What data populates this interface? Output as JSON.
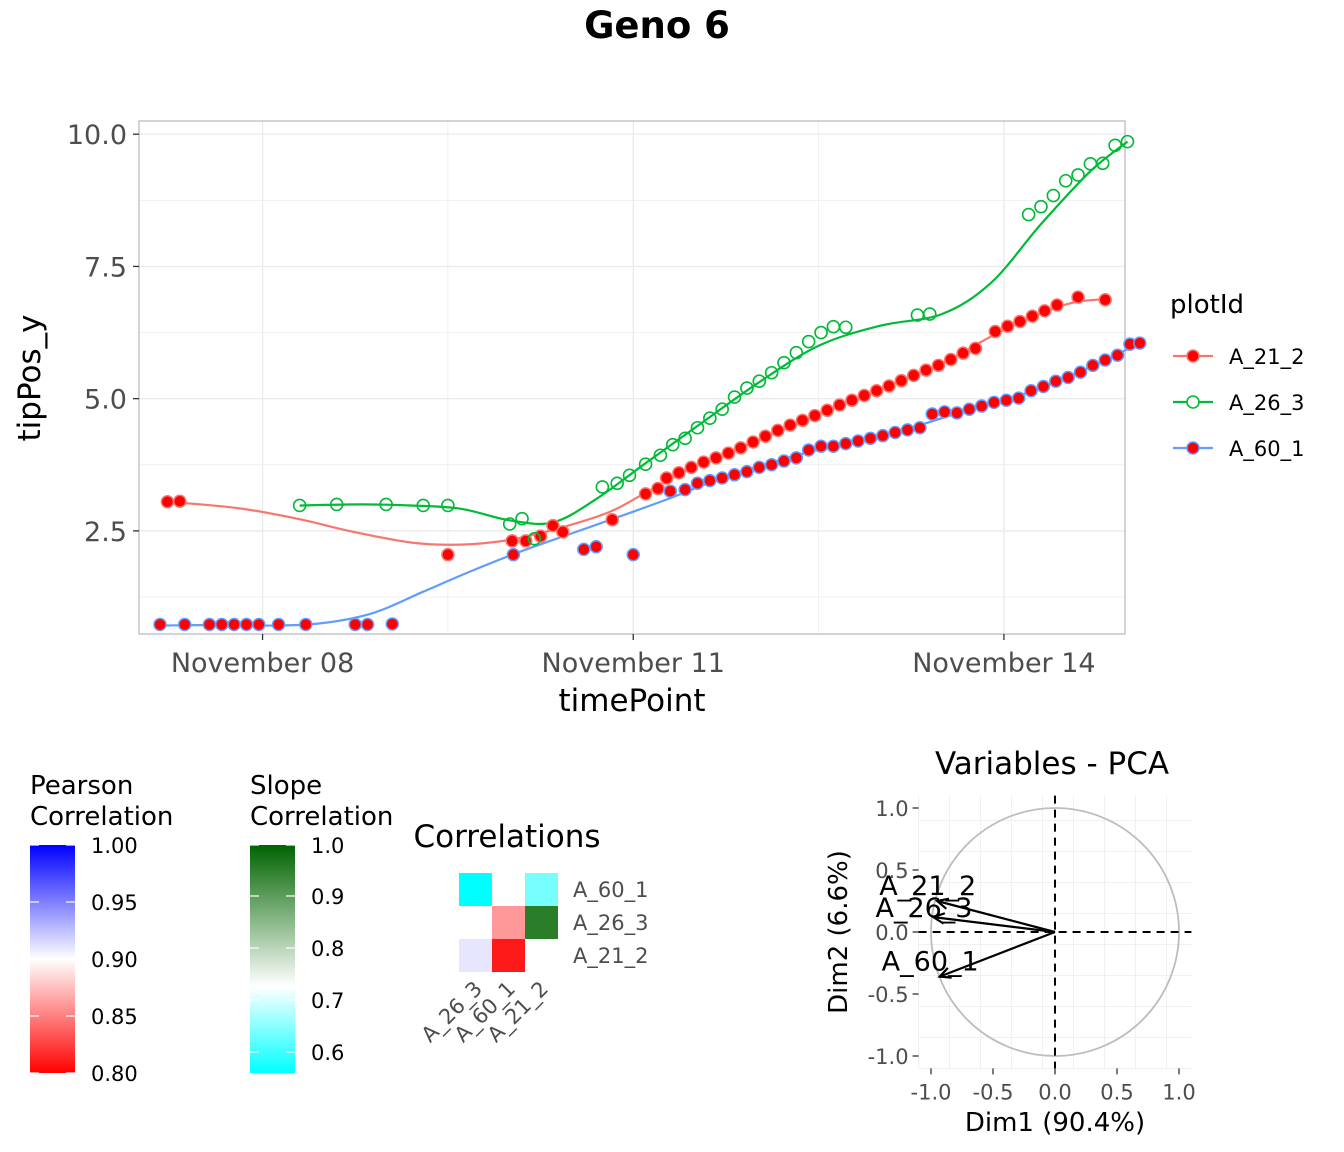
{
  "title": "Geno 6",
  "colors": {
    "A_21_2": "#F8766D",
    "A_26_3": "#00BA38",
    "A_60_1": "#619CFF",
    "point_fill": "#FF0000",
    "grid": "#EBEBEB",
    "panel_border": "#BDBDBD",
    "pearson_gradient": [
      "#FF0000",
      "#FFFFFF",
      "#0000FF"
    ],
    "slope_gradient": [
      "#00FFFF",
      "#FFFFFF",
      "#006400"
    ]
  },
  "chart_data": [
    {
      "type": "scatter",
      "title": "Geno 6",
      "xlabel": "timePoint",
      "ylabel": "tipPos_y",
      "x_ticks": [
        "November 08",
        "November 11",
        "November 14"
      ],
      "y_ticks": [
        "2.5",
        "5.0",
        "7.5",
        "10.0"
      ],
      "xlim": [
        "2021-11-07",
        "2021-11-14.98"
      ],
      "ylim": [
        0.55,
        10.25
      ],
      "legend_title": "plotId",
      "legend_position": "right",
      "grid": true,
      "series": [
        {
          "name": "A_21_2",
          "marker": "filled-circle",
          "points": [
            [
              "2021-11-07.23",
              3.05
            ],
            [
              "2021-11-07.33",
              3.06
            ],
            [
              "2021-11-09.5",
              2.05
            ],
            [
              "2021-11-10.02",
              2.31
            ],
            [
              "2021-11-10.13",
              2.31
            ],
            [
              "2021-11-10.25",
              2.4
            ],
            [
              "2021-11-10.35",
              2.6
            ],
            [
              "2021-11-10.43",
              2.48
            ],
            [
              "2021-11-10.83",
              2.71
            ],
            [
              "2021-11-11.1",
              3.2
            ],
            [
              "2021-11-11.2",
              3.3
            ],
            [
              "2021-11-11.27",
              3.5
            ],
            [
              "2021-11-11.37",
              3.6
            ],
            [
              "2021-11-11.47",
              3.7
            ],
            [
              "2021-11-11.57",
              3.8
            ],
            [
              "2021-11-11.67",
              3.88
            ],
            [
              "2021-11-11.77",
              3.97
            ],
            [
              "2021-11-11.87",
              4.07
            ],
            [
              "2021-11-11.97",
              4.18
            ],
            [
              "2021-11-12.07",
              4.29
            ],
            [
              "2021-11-12.17",
              4.4
            ],
            [
              "2021-11-12.27",
              4.5
            ],
            [
              "2021-11-12.37",
              4.59
            ],
            [
              "2021-11-12.47",
              4.68
            ],
            [
              "2021-11-12.57",
              4.78
            ],
            [
              "2021-11-12.67",
              4.88
            ],
            [
              "2021-11-12.77",
              4.97
            ],
            [
              "2021-11-12.87",
              5.06
            ],
            [
              "2021-11-12.97",
              5.15
            ],
            [
              "2021-11-13.07",
              5.24
            ],
            [
              "2021-11-13.17",
              5.34
            ],
            [
              "2021-11-13.27",
              5.44
            ],
            [
              "2021-11-13.37",
              5.54
            ],
            [
              "2021-11-13.47",
              5.63
            ],
            [
              "2021-11-13.57",
              5.74
            ],
            [
              "2021-11-13.67",
              5.86
            ],
            [
              "2021-11-13.77",
              5.95
            ],
            [
              "2021-11-13.93",
              6.27
            ],
            [
              "2021-11-14.03",
              6.37
            ],
            [
              "2021-11-14.13",
              6.46
            ],
            [
              "2021-11-14.23",
              6.56
            ],
            [
              "2021-11-14.33",
              6.66
            ],
            [
              "2021-11-14.43",
              6.77
            ],
            [
              "2021-11-14.6",
              6.92
            ],
            [
              "2021-11-14.82",
              6.87
            ]
          ],
          "trend": [
            [
              "2021-11-07.23",
              3.05
            ],
            [
              "2021-11-07.8",
              2.93
            ],
            [
              "2021-11-08.3",
              2.72
            ],
            [
              "2021-11-08.7",
              2.5
            ],
            [
              "2021-11-09.2",
              2.28
            ],
            [
              "2021-11-09.6",
              2.24
            ],
            [
              "2021-11-10.0",
              2.33
            ],
            [
              "2021-11-10.4",
              2.55
            ],
            [
              "2021-11-10.8",
              2.85
            ],
            [
              "2021-11-11.1",
              3.22
            ],
            [
              "2021-11-11.5",
              3.72
            ],
            [
              "2021-11-12.0",
              4.2
            ],
            [
              "2021-11-12.5",
              4.7
            ],
            [
              "2021-11-13.0",
              5.18
            ],
            [
              "2021-11-13.5",
              5.67
            ],
            [
              "2021-11-14.0",
              6.3
            ],
            [
              "2021-11-14.5",
              6.78
            ],
            [
              "2021-11-14.8",
              6.88
            ]
          ]
        },
        {
          "name": "A_26_3",
          "marker": "open-circle",
          "points": [
            [
              "2021-11-08.3",
              2.98
            ],
            [
              "2021-11-08.6",
              3.0
            ],
            [
              "2021-11-09.0",
              3.0
            ],
            [
              "2021-11-09.3",
              2.98
            ],
            [
              "2021-11-09.5",
              2.98
            ],
            [
              "2021-11-10.0",
              2.63
            ],
            [
              "2021-11-10.1",
              2.73
            ],
            [
              "2021-11-10.2",
              2.35
            ],
            [
              "2021-11-10.75",
              3.33
            ],
            [
              "2021-11-10.87",
              3.4
            ],
            [
              "2021-11-10.97",
              3.55
            ],
            [
              "2021-11-11.1",
              3.76
            ],
            [
              "2021-11-11.22",
              3.93
            ],
            [
              "2021-11-11.32",
              4.13
            ],
            [
              "2021-11-11.42",
              4.25
            ],
            [
              "2021-11-11.52",
              4.45
            ],
            [
              "2021-11-11.62",
              4.63
            ],
            [
              "2021-11-11.72",
              4.8
            ],
            [
              "2021-11-11.82",
              5.03
            ],
            [
              "2021-11-11.92",
              5.2
            ],
            [
              "2021-11-12.02",
              5.33
            ],
            [
              "2021-11-12.12",
              5.49
            ],
            [
              "2021-11-12.22",
              5.68
            ],
            [
              "2021-11-12.32",
              5.87
            ],
            [
              "2021-11-12.42",
              6.08
            ],
            [
              "2021-11-12.52",
              6.25
            ],
            [
              "2021-11-12.62",
              6.36
            ],
            [
              "2021-11-12.72",
              6.35
            ],
            [
              "2021-11-13.3",
              6.58
            ],
            [
              "2021-11-13.4",
              6.6
            ],
            [
              "2021-11-14.2",
              8.48
            ],
            [
              "2021-11-14.3",
              8.63
            ],
            [
              "2021-11-14.4",
              8.84
            ],
            [
              "2021-11-14.5",
              9.12
            ],
            [
              "2021-11-14.6",
              9.23
            ],
            [
              "2021-11-14.7",
              9.44
            ],
            [
              "2021-11-14.8",
              9.45
            ],
            [
              "2021-11-14.9",
              9.79
            ],
            [
              "2021-11-15.0",
              9.86
            ]
          ],
          "trend": [
            [
              "2021-11-08.3",
              2.98
            ],
            [
              "2021-11-08.8",
              3.0
            ],
            [
              "2021-11-09.2",
              2.98
            ],
            [
              "2021-11-09.6",
              2.92
            ],
            [
              "2021-11-10.0",
              2.7
            ],
            [
              "2021-11-10.35",
              2.66
            ],
            [
              "2021-11-10.7",
              3.1
            ],
            [
              "2021-11-11.1",
              3.78
            ],
            [
              "2021-11-11.5",
              4.45
            ],
            [
              "2021-11-12.0",
              5.28
            ],
            [
              "2021-11-12.5",
              6.0
            ],
            [
              "2021-11-13.0",
              6.38
            ],
            [
              "2021-11-13.5",
              6.6
            ],
            [
              "2021-11-13.9",
              7.2
            ],
            [
              "2021-11-14.3",
              8.3
            ],
            [
              "2021-11-14.7",
              9.3
            ],
            [
              "2021-11-15.0",
              9.86
            ]
          ]
        },
        {
          "name": "A_60_1",
          "marker": "filled-circle",
          "points": [
            [
              "2021-11-07.17",
              0.73
            ],
            [
              "2021-11-07.37",
              0.73
            ],
            [
              "2021-11-07.57",
              0.73
            ],
            [
              "2021-11-07.67",
              0.73
            ],
            [
              "2021-11-07.77",
              0.73
            ],
            [
              "2021-11-07.87",
              0.73
            ],
            [
              "2021-11-07.97",
              0.73
            ],
            [
              "2021-11-08.13",
              0.73
            ],
            [
              "2021-11-08.35",
              0.73
            ],
            [
              "2021-11-08.75",
              0.73
            ],
            [
              "2021-11-08.85",
              0.73
            ],
            [
              "2021-11-09.05",
              0.74
            ],
            [
              "2021-11-10.03",
              2.05
            ],
            [
              "2021-11-10.6",
              2.15
            ],
            [
              "2021-11-10.7",
              2.2
            ],
            [
              "2021-11-11.0",
              2.05
            ],
            [
              "2021-11-11.3",
              3.25
            ],
            [
              "2021-11-11.42",
              3.28
            ],
            [
              "2021-11-11.52",
              3.4
            ],
            [
              "2021-11-11.62",
              3.45
            ],
            [
              "2021-11-11.72",
              3.5
            ],
            [
              "2021-11-11.82",
              3.56
            ],
            [
              "2021-11-11.92",
              3.62
            ],
            [
              "2021-11-12.02",
              3.7
            ],
            [
              "2021-11-12.12",
              3.75
            ],
            [
              "2021-11-12.22",
              3.82
            ],
            [
              "2021-11-12.32",
              3.88
            ],
            [
              "2021-11-12.42",
              4.03
            ],
            [
              "2021-11-12.52",
              4.1
            ],
            [
              "2021-11-12.62",
              4.1
            ],
            [
              "2021-11-12.72",
              4.15
            ],
            [
              "2021-11-12.82",
              4.2
            ],
            [
              "2021-11-12.92",
              4.25
            ],
            [
              "2021-11-13.02",
              4.3
            ],
            [
              "2021-11-13.12",
              4.36
            ],
            [
              "2021-11-13.22",
              4.41
            ],
            [
              "2021-11-13.32",
              4.45
            ],
            [
              "2021-11-13.42",
              4.71
            ],
            [
              "2021-11-13.52",
              4.75
            ],
            [
              "2021-11-13.62",
              4.73
            ],
            [
              "2021-11-13.72",
              4.8
            ],
            [
              "2021-11-13.82",
              4.86
            ],
            [
              "2021-11-13.92",
              4.93
            ],
            [
              "2021-11-14.02",
              4.97
            ],
            [
              "2021-11-14.12",
              5.01
            ],
            [
              "2021-11-14.22",
              5.15
            ],
            [
              "2021-11-14.32",
              5.23
            ],
            [
              "2021-11-14.42",
              5.33
            ],
            [
              "2021-11-14.52",
              5.4
            ],
            [
              "2021-11-14.62",
              5.5
            ],
            [
              "2021-11-14.72",
              5.63
            ],
            [
              "2021-11-14.82",
              5.73
            ],
            [
              "2021-11-14.92",
              5.82
            ],
            [
              "2021-11-15.02",
              6.03
            ],
            [
              "2021-11-15.1",
              6.05
            ]
          ],
          "trend": [
            [
              "2021-11-07.17",
              0.71
            ],
            [
              "2021-11-07.6",
              0.72
            ],
            [
              "2021-11-08.1",
              0.71
            ],
            [
              "2021-11-08.5",
              0.76
            ],
            [
              "2021-11-08.9",
              0.95
            ],
            [
              "2021-11-09.3",
              1.35
            ],
            [
              "2021-11-09.7",
              1.75
            ],
            [
              "2021-11-10.1",
              2.12
            ],
            [
              "2021-11-10.5",
              2.45
            ],
            [
              "2021-11-10.9",
              2.78
            ],
            [
              "2021-11-11.3",
              3.12
            ],
            [
              "2021-11-11.7",
              3.48
            ],
            [
              "2021-11-12.2",
              3.85
            ],
            [
              "2021-11-12.7",
              4.15
            ],
            [
              "2021-11-13.2",
              4.42
            ],
            [
              "2021-11-13.7",
              4.78
            ],
            [
              "2021-11-14.2",
              5.12
            ],
            [
              "2021-11-14.7",
              5.6
            ],
            [
              "2021-11-15.1",
              6.05
            ]
          ]
        }
      ]
    },
    {
      "type": "heatmap",
      "title": "Correlations",
      "pearson_legend": {
        "title": [
          "Pearson",
          "Correlation"
        ],
        "ticks": [
          "1.00",
          "0.95",
          "0.90",
          "0.85",
          "0.80"
        ]
      },
      "slope_legend": {
        "title": [
          "Slope",
          "Correlation"
        ],
        "ticks": [
          "1.0",
          "0.9",
          "0.8",
          "0.7",
          "0.6"
        ]
      },
      "row_labels": [
        "A_60_1",
        "A_26_3",
        "A_21_2"
      ],
      "col_labels": [
        "A_26_3",
        "A_60_1",
        "A_21_2"
      ],
      "cells": [
        {
          "row": "A_60_1",
          "col": "A_26_3",
          "kind": "slope",
          "value": 0.55
        },
        {
          "row": "A_60_1",
          "col": "A_21_2",
          "kind": "slope",
          "value": 0.62
        },
        {
          "row": "A_26_3",
          "col": "A_60_1",
          "kind": "pearson",
          "value": 0.86
        },
        {
          "row": "A_26_3",
          "col": "A_21_2",
          "kind": "slope",
          "value": 0.95
        },
        {
          "row": "A_21_2",
          "col": "A_26_3",
          "kind": "pearson",
          "value": 0.91
        },
        {
          "row": "A_21_2",
          "col": "A_60_1",
          "kind": "pearson",
          "value": 0.81
        }
      ]
    },
    {
      "type": "scatter",
      "title": "Variables - PCA",
      "xlabel": "Dim1 (90.4%)",
      "ylabel": "Dim2 (6.6%)",
      "xlim": [
        -1.1,
        1.1
      ],
      "ylim": [
        -1.1,
        1.1
      ],
      "x_ticks": [
        "-1.0",
        "-0.5",
        "0.0",
        "0.5",
        "1.0"
      ],
      "y_ticks": [
        "-1.0",
        "-0.5",
        "0.0",
        "0.5",
        "1.0"
      ],
      "arrows": [
        {
          "name": "A_21_2",
          "x": -0.95,
          "y": 0.25
        },
        {
          "name": "A_26_3",
          "x": -0.98,
          "y": 0.12
        },
        {
          "name": "A_60_1",
          "x": -0.93,
          "y": -0.36
        }
      ]
    }
  ]
}
